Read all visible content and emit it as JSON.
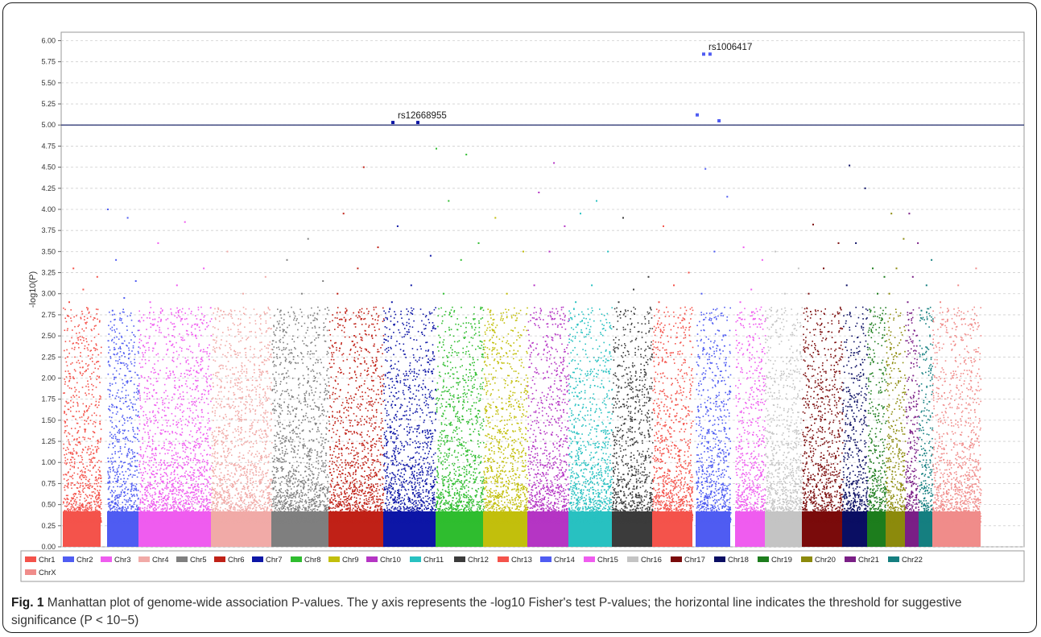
{
  "chart_data": {
    "type": "scatter",
    "title": "",
    "ylabel": "-log10(P)",
    "ylim": [
      0,
      6.1
    ],
    "yticks": [
      "0.00",
      "0.25",
      "0.50",
      "0.75",
      "1.00",
      "1.25",
      "1.50",
      "1.75",
      "2.00",
      "2.25",
      "2.50",
      "2.75",
      "3.00",
      "3.25",
      "3.50",
      "3.75",
      "4.00",
      "4.25",
      "4.50",
      "4.75",
      "5.00",
      "5.25",
      "5.50",
      "5.75",
      "6.00"
    ],
    "threshold": 5.0,
    "threshold_color": "#1f2a6b",
    "grid": "horizontal dashed",
    "legend_position": "bottom",
    "series": [
      {
        "name": "Chr1",
        "color": "#f4534b",
        "top_points": [
          2.9,
          3.05,
          3.2,
          3.3
        ],
        "max": 3.3
      },
      {
        "name": "Chr2",
        "color": "#4f5cf2",
        "top_points": [
          2.8,
          2.95,
          3.15,
          3.4,
          3.9,
          4.0
        ],
        "max": 4.0
      },
      {
        "name": "Chr3",
        "color": "#ef5cef",
        "top_points": [
          2.9,
          3.1,
          3.3,
          3.6,
          3.85
        ],
        "max": 3.85
      },
      {
        "name": "Chr4",
        "color": "#f1aaa7",
        "top_points": [
          2.8,
          3.0,
          3.2,
          3.5
        ],
        "max": 3.5
      },
      {
        "name": "Chr5",
        "color": "#7f7f7f",
        "top_points": [
          2.8,
          3.0,
          3.15,
          3.4,
          3.65
        ],
        "max": 3.65
      },
      {
        "name": "Chr6",
        "color": "#c02117",
        "top_points": [
          3.0,
          3.3,
          3.55,
          3.95,
          4.5
        ],
        "max": 4.5
      },
      {
        "name": "Chr7",
        "color": "#0d16a6",
        "top_points": [
          2.9,
          3.1,
          3.45,
          3.8,
          5.03
        ],
        "max": 5.03
      },
      {
        "name": "Chr8",
        "color": "#2fbd2f",
        "top_points": [
          3.0,
          3.4,
          3.6,
          4.1,
          4.65,
          4.72
        ],
        "max": 4.72
      },
      {
        "name": "Chr9",
        "color": "#c2bf0c",
        "top_points": [
          2.8,
          3.0,
          3.5,
          3.9
        ],
        "max": 3.9
      },
      {
        "name": "Chr10",
        "color": "#b535c4",
        "top_points": [
          3.1,
          3.5,
          3.8,
          4.2,
          4.55
        ],
        "max": 4.55
      },
      {
        "name": "Chr11",
        "color": "#28c1c1",
        "top_points": [
          2.9,
          3.1,
          3.5,
          3.95,
          4.1
        ],
        "max": 4.1
      },
      {
        "name": "Chr12",
        "color": "#3b3b3b",
        "top_points": [
          2.9,
          3.05,
          3.2,
          3.9
        ],
        "max": 3.9
      },
      {
        "name": "Chr13",
        "color": "#f4534b",
        "top_points": [
          2.9,
          3.1,
          3.25,
          3.8
        ],
        "max": 3.8
      },
      {
        "name": "Chr14",
        "color": "#4f5cf2",
        "top_points": [
          3.0,
          3.5,
          4.15,
          4.48,
          5.05,
          5.12,
          5.84
        ],
        "max": 5.84
      },
      {
        "name": "Chr15",
        "color": "#ef5cef",
        "top_points": [
          2.9,
          3.05,
          3.4,
          3.55
        ],
        "max": 3.55
      },
      {
        "name": "Chr16",
        "color": "#c4c4c4",
        "top_points": [
          2.8,
          3.0,
          3.3,
          3.5
        ],
        "max": 3.5
      },
      {
        "name": "Chr17",
        "color": "#7a0b0b",
        "top_points": [
          3.0,
          3.3,
          3.6,
          3.82
        ],
        "max": 3.82
      },
      {
        "name": "Chr18",
        "color": "#0a0e63",
        "top_points": [
          3.1,
          3.6,
          4.25,
          4.52
        ],
        "max": 4.52
      },
      {
        "name": "Chr19",
        "color": "#1d7d1d",
        "top_points": [
          2.8,
          3.0,
          3.2,
          3.3
        ],
        "max": 3.3
      },
      {
        "name": "Chr20",
        "color": "#8c8a0c",
        "top_points": [
          3.0,
          3.3,
          3.65,
          3.95
        ],
        "max": 3.95
      },
      {
        "name": "Chr21",
        "color": "#7a1f86",
        "top_points": [
          2.9,
          3.2,
          3.6,
          3.95
        ],
        "max": 3.95
      },
      {
        "name": "Chr22",
        "color": "#157f80",
        "top_points": [
          2.8,
          3.1,
          3.4
        ],
        "max": 3.4
      },
      {
        "name": "ChrX",
        "color": "#f08c8a",
        "top_points": [
          2.9,
          3.1,
          3.3
        ],
        "max": 3.3
      }
    ],
    "annotations": [
      {
        "label": "rs12668955",
        "chromosome": "Chr7",
        "y": 5.03
      },
      {
        "label": "rs1006417",
        "chromosome": "Chr14",
        "y": 5.84
      }
    ]
  },
  "caption": {
    "fig_label": "Fig. 1",
    "text": " Manhattan plot of genome-wide association P-values. The y axis represents the -log10 Fisher's test P-values; the horizontal line indicates the threshold for suggestive significance (P < 10−5)"
  }
}
